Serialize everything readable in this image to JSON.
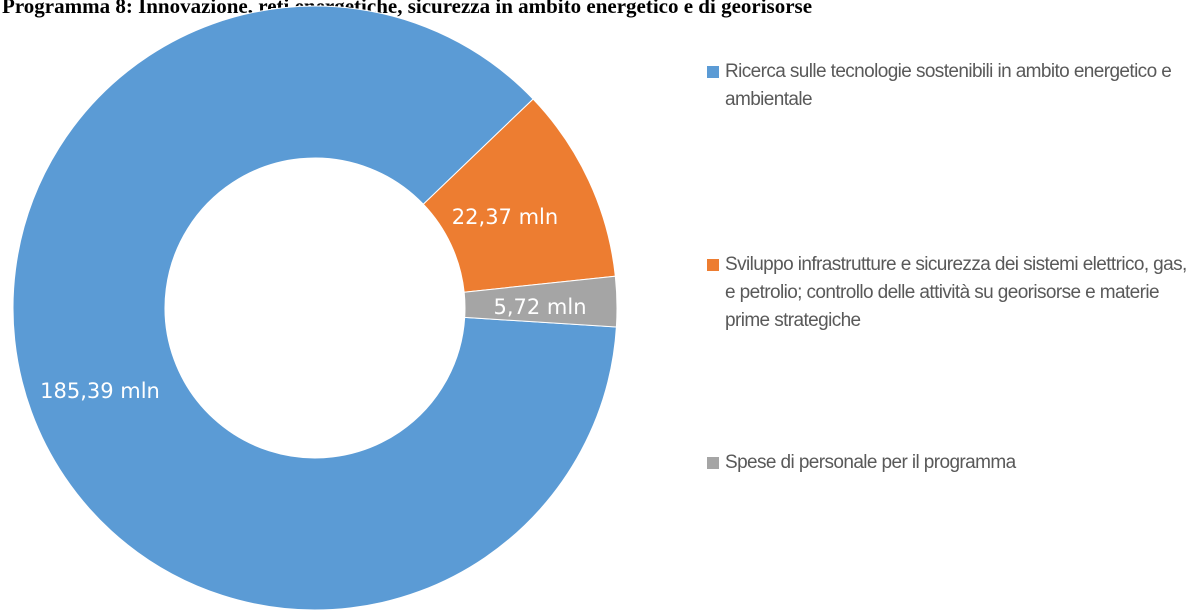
{
  "chart_data": {
    "type": "donut",
    "title": "Programma 8: Innovazione, reti energetiche, sicurezza in ambito energetico e di georisorse",
    "categories": [
      "Ricerca sulle tecnologie sostenibili in ambito energetico e ambientale",
      "Sviluppo infrastrutture e sicurezza dei sistemi elettrico, gas, e petrolio; controllo delle attività su georisorse e materie prime strategiche",
      "Spese di personale per il programma"
    ],
    "values": [
      185.39,
      22.37,
      5.72
    ],
    "value_labels": [
      "185,39 mln",
      "22,37 mln",
      "5,72 mln"
    ],
    "colors": [
      "#5b9bd5",
      "#ed7d31",
      "#a5a5a5"
    ],
    "legend": "right"
  }
}
